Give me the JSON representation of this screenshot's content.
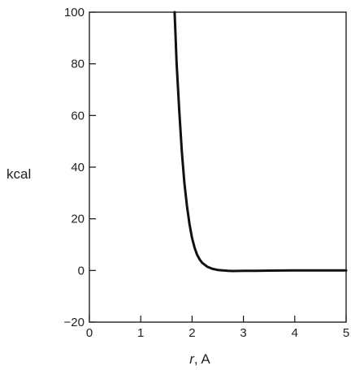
{
  "chart_data": {
    "type": "line",
    "title": "",
    "xlabel_var": "r",
    "xlabel_unit": ", A",
    "ylabel": "kcal",
    "xlim": [
      0,
      5
    ],
    "ylim": [
      -20,
      100
    ],
    "grid": false,
    "xticks": [
      0,
      1,
      2,
      3,
      4,
      5
    ],
    "yticks": [
      -20,
      0,
      20,
      40,
      60,
      80,
      100
    ],
    "line_color": "#111111",
    "series": [
      {
        "x": [
          1.66,
          1.7,
          1.75,
          1.8,
          1.85,
          1.9,
          1.95,
          2.0,
          2.05,
          2.1,
          2.15,
          2.2,
          2.3,
          2.4,
          2.5,
          2.6,
          2.7,
          2.8,
          3.0,
          3.25,
          3.5,
          4.0,
          4.5,
          5.0
        ],
        "y": [
          100,
          80,
          62,
          46,
          34,
          25,
          18,
          12.5,
          8.7,
          6,
          4.2,
          2.9,
          1.4,
          0.6,
          0.2,
          0,
          -0.15,
          -0.2,
          -0.15,
          -0.1,
          -0.05,
          0,
          0,
          0
        ]
      }
    ]
  }
}
